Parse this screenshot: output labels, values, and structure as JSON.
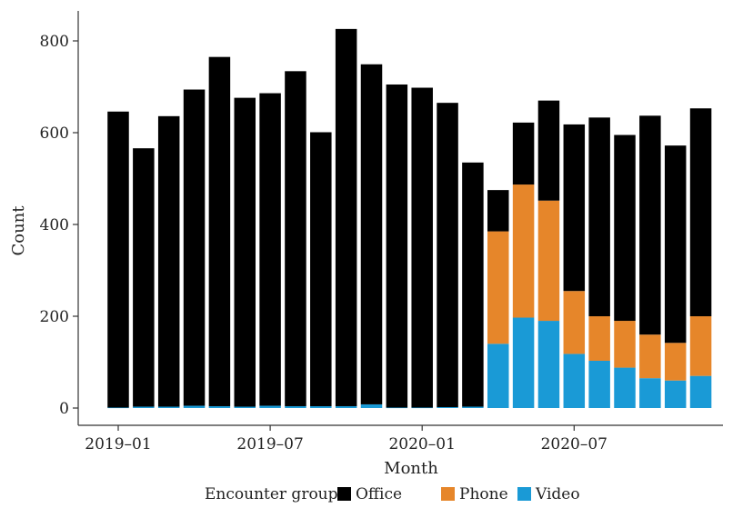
{
  "chart_data": {
    "type": "bar",
    "stacked": true,
    "title": "",
    "xlabel": "Month",
    "ylabel": "Count",
    "ylim": [
      0,
      850
    ],
    "yticks": [
      0,
      200,
      400,
      600,
      800
    ],
    "grid": false,
    "x_tick_labels": [
      {
        "label": "2019–01",
        "month_index": 0
      },
      {
        "label": "2019–07",
        "month_index": 6
      },
      {
        "label": "2020–01",
        "month_index": 12
      },
      {
        "label": "2020–07",
        "month_index": 18
      }
    ],
    "categories": [
      "2019-01",
      "2019-02",
      "2019-03",
      "2019-04",
      "2019-05",
      "2019-06",
      "2019-07",
      "2019-08",
      "2019-09",
      "2019-10",
      "2019-11",
      "2019-12",
      "2020-01",
      "2020-02",
      "2020-03",
      "2020-04",
      "2020-05",
      "2020-06",
      "2020-07",
      "2020-08",
      "2020-09",
      "2020-10",
      "2020-11",
      "2020-12"
    ],
    "legend": {
      "title": "Encounter group",
      "position": "bottom"
    },
    "series": [
      {
        "name": "Video",
        "color": "#1a9ad6",
        "values": [
          1,
          3,
          3,
          5,
          4,
          3,
          5,
          4,
          4,
          4,
          8,
          1,
          1,
          2,
          3,
          140,
          197,
          190,
          118,
          103,
          88,
          65,
          60,
          70
        ]
      },
      {
        "name": "Phone",
        "color": "#e6862a",
        "values": [
          0,
          0,
          0,
          0,
          0,
          0,
          0,
          0,
          0,
          0,
          0,
          0,
          0,
          0,
          0,
          245,
          290,
          262,
          137,
          97,
          102,
          95,
          82,
          130
        ]
      },
      {
        "name": "Office",
        "color": "#000000",
        "values": [
          645,
          563,
          633,
          689,
          761,
          673,
          681,
          730,
          597,
          822,
          741,
          704,
          697,
          663,
          532,
          90,
          135,
          218,
          363,
          433,
          405,
          477,
          430,
          453
        ]
      }
    ]
  }
}
